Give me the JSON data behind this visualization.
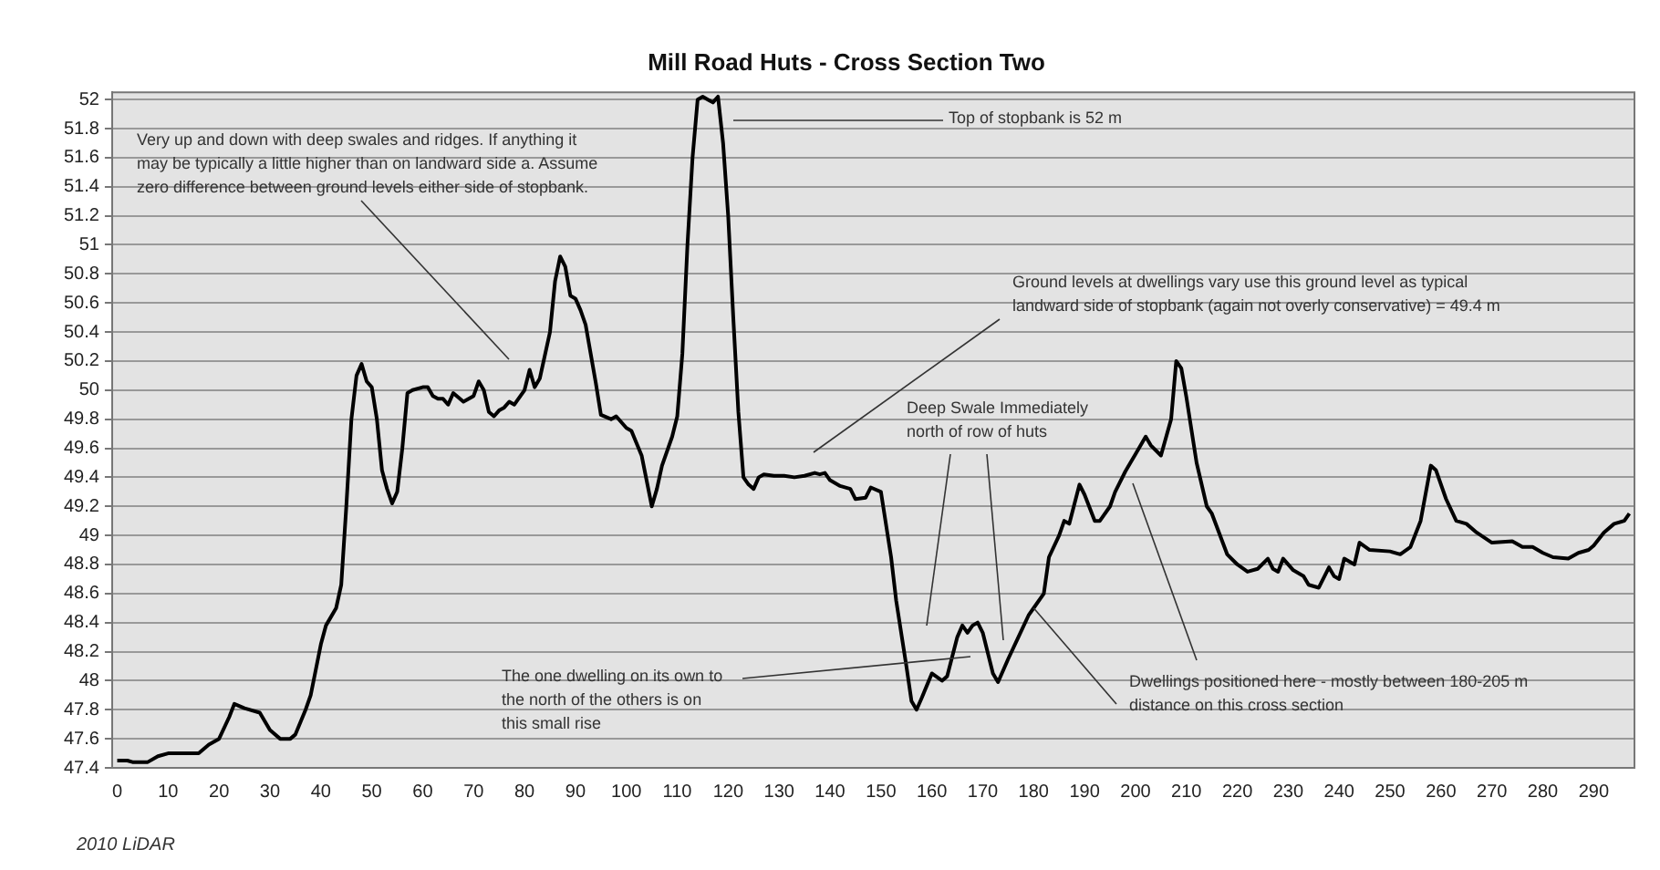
{
  "chart_data": {
    "type": "line",
    "title": "Mill Road Huts - Cross Section Two",
    "x": [
      0,
      2,
      3,
      6,
      8,
      10,
      16,
      18,
      20,
      22,
      23,
      25,
      28,
      30,
      32,
      34,
      35,
      37,
      38,
      40,
      41,
      43,
      44,
      45,
      46,
      47,
      48,
      49,
      50,
      51,
      52,
      53,
      54,
      55,
      56,
      57,
      58,
      60,
      61,
      62,
      63,
      64,
      65,
      66,
      67,
      68,
      70,
      71,
      72,
      73,
      74,
      75,
      76,
      77,
      78,
      80,
      81,
      82,
      83,
      85,
      86,
      87,
      88,
      89,
      90,
      91,
      92,
      94,
      95,
      97,
      98,
      100,
      101,
      103,
      105,
      106,
      107,
      109,
      110,
      111,
      112,
      113,
      114,
      115,
      116,
      117,
      118,
      119,
      120,
      121,
      122,
      123,
      124,
      125,
      126,
      127,
      129,
      131,
      133,
      135,
      137,
      138,
      139,
      140,
      142,
      144,
      145,
      147,
      148,
      150,
      152,
      153,
      155,
      156,
      157,
      158,
      160,
      162,
      163,
      165,
      166,
      167,
      168,
      169,
      170,
      172,
      173,
      175,
      177,
      179,
      180,
      182,
      183,
      185,
      186,
      187,
      189,
      190,
      192,
      193,
      195,
      196,
      198,
      200,
      202,
      203,
      205,
      207,
      208,
      209,
      210,
      212,
      214,
      215,
      218,
      220,
      222,
      224,
      226,
      227,
      228,
      229,
      231,
      233,
      234,
      236,
      238,
      239,
      240,
      241,
      243,
      244,
      246,
      250,
      252,
      254,
      256,
      258,
      259,
      261,
      263,
      265,
      267,
      270,
      274,
      276,
      278,
      280,
      282,
      285,
      287,
      289,
      290,
      292,
      294,
      296,
      297
    ],
    "series": [
      {
        "color": "#000000",
        "values": [
          47.45,
          47.45,
          47.44,
          47.44,
          47.48,
          47.5,
          47.5,
          47.56,
          47.6,
          47.75,
          47.84,
          47.81,
          47.78,
          47.66,
          47.6,
          47.6,
          47.63,
          47.8,
          47.9,
          48.25,
          48.38,
          48.5,
          48.66,
          49.2,
          49.8,
          50.1,
          50.18,
          50.06,
          50.02,
          49.8,
          49.45,
          49.32,
          49.22,
          49.3,
          49.6,
          49.98,
          50,
          50.02,
          50.02,
          49.96,
          49.94,
          49.94,
          49.9,
          49.98,
          49.95,
          49.92,
          49.96,
          50.06,
          50,
          49.85,
          49.82,
          49.86,
          49.88,
          49.92,
          49.9,
          50,
          50.14,
          50.02,
          50.08,
          50.4,
          50.75,
          50.92,
          50.85,
          50.65,
          50.63,
          50.55,
          50.45,
          50.05,
          49.83,
          49.8,
          49.82,
          49.74,
          49.72,
          49.55,
          49.2,
          49.32,
          49.48,
          49.68,
          49.82,
          50.25,
          51,
          51.6,
          52,
          52.02,
          52,
          51.98,
          52.02,
          51.7,
          51.2,
          50.5,
          49.85,
          49.4,
          49.35,
          49.32,
          49.4,
          49.42,
          49.41,
          49.41,
          49.4,
          49.41,
          49.43,
          49.42,
          49.43,
          49.38,
          49.34,
          49.32,
          49.25,
          49.26,
          49.33,
          49.3,
          48.85,
          48.55,
          48.1,
          47.86,
          47.8,
          47.88,
          48.05,
          48,
          48.03,
          48.3,
          48.38,
          48.33,
          48.38,
          48.4,
          48.33,
          48.05,
          47.99,
          48.15,
          48.3,
          48.45,
          48.5,
          48.6,
          48.85,
          49,
          49.1,
          49.08,
          49.35,
          49.28,
          49.1,
          49.1,
          49.2,
          49.3,
          49.44,
          49.56,
          49.68,
          49.62,
          49.55,
          49.8,
          50.2,
          50.15,
          49.95,
          49.5,
          49.2,
          49.15,
          48.87,
          48.8,
          48.75,
          48.77,
          48.84,
          48.77,
          48.75,
          48.84,
          48.76,
          48.72,
          48.66,
          48.64,
          48.78,
          48.72,
          48.7,
          48.84,
          48.8,
          48.95,
          48.9,
          48.89,
          48.87,
          48.92,
          49.1,
          49.48,
          49.45,
          49.25,
          49.1,
          49.08,
          49.02,
          48.95,
          48.96,
          48.92,
          48.92,
          48.88,
          48.85,
          48.84,
          48.88,
          48.9,
          48.93,
          49.02,
          49.08,
          49.1,
          49.15
        ]
      }
    ],
    "xlim": [
      -1,
      298
    ],
    "xticks": [
      0,
      10,
      20,
      30,
      40,
      50,
      60,
      70,
      80,
      90,
      100,
      110,
      120,
      130,
      140,
      150,
      160,
      170,
      180,
      190,
      200,
      210,
      220,
      230,
      240,
      250,
      260,
      270,
      280,
      290
    ],
    "ylim": [
      47.4,
      52.05
    ],
    "yticks": [
      47.4,
      47.6,
      47.8,
      48,
      48.2,
      48.4,
      48.6,
      48.8,
      49,
      49.2,
      49.4,
      49.6,
      49.8,
      50,
      50.2,
      50.4,
      50.6,
      50.8,
      51,
      51.2,
      51.4,
      51.6,
      51.8,
      52
    ],
    "grid": "y",
    "legend": false,
    "marker": "none",
    "line_style": "solid",
    "annotations": [
      "Very up and down with deep swales and ridges. If anything it may be typically a little higher than on landward side a. Assume zero difference between ground levels either side of stopbank.",
      "Top of stopbank is 52 m",
      "Ground levels at dwellings vary use this ground level as typical landward side of stopbank (again not overly conservative) = 49.4 m",
      "Deep Swale Immediately north of row of huts",
      "The one dwelling on its own to the north of the others is on this small rise",
      {
        "text": "Dwellings positioned here - mostly between 180-205 m distance on this cross section",
        "x": 180,
        "y": 48.5
      },
      "2010 LiDAR"
    ]
  }
}
